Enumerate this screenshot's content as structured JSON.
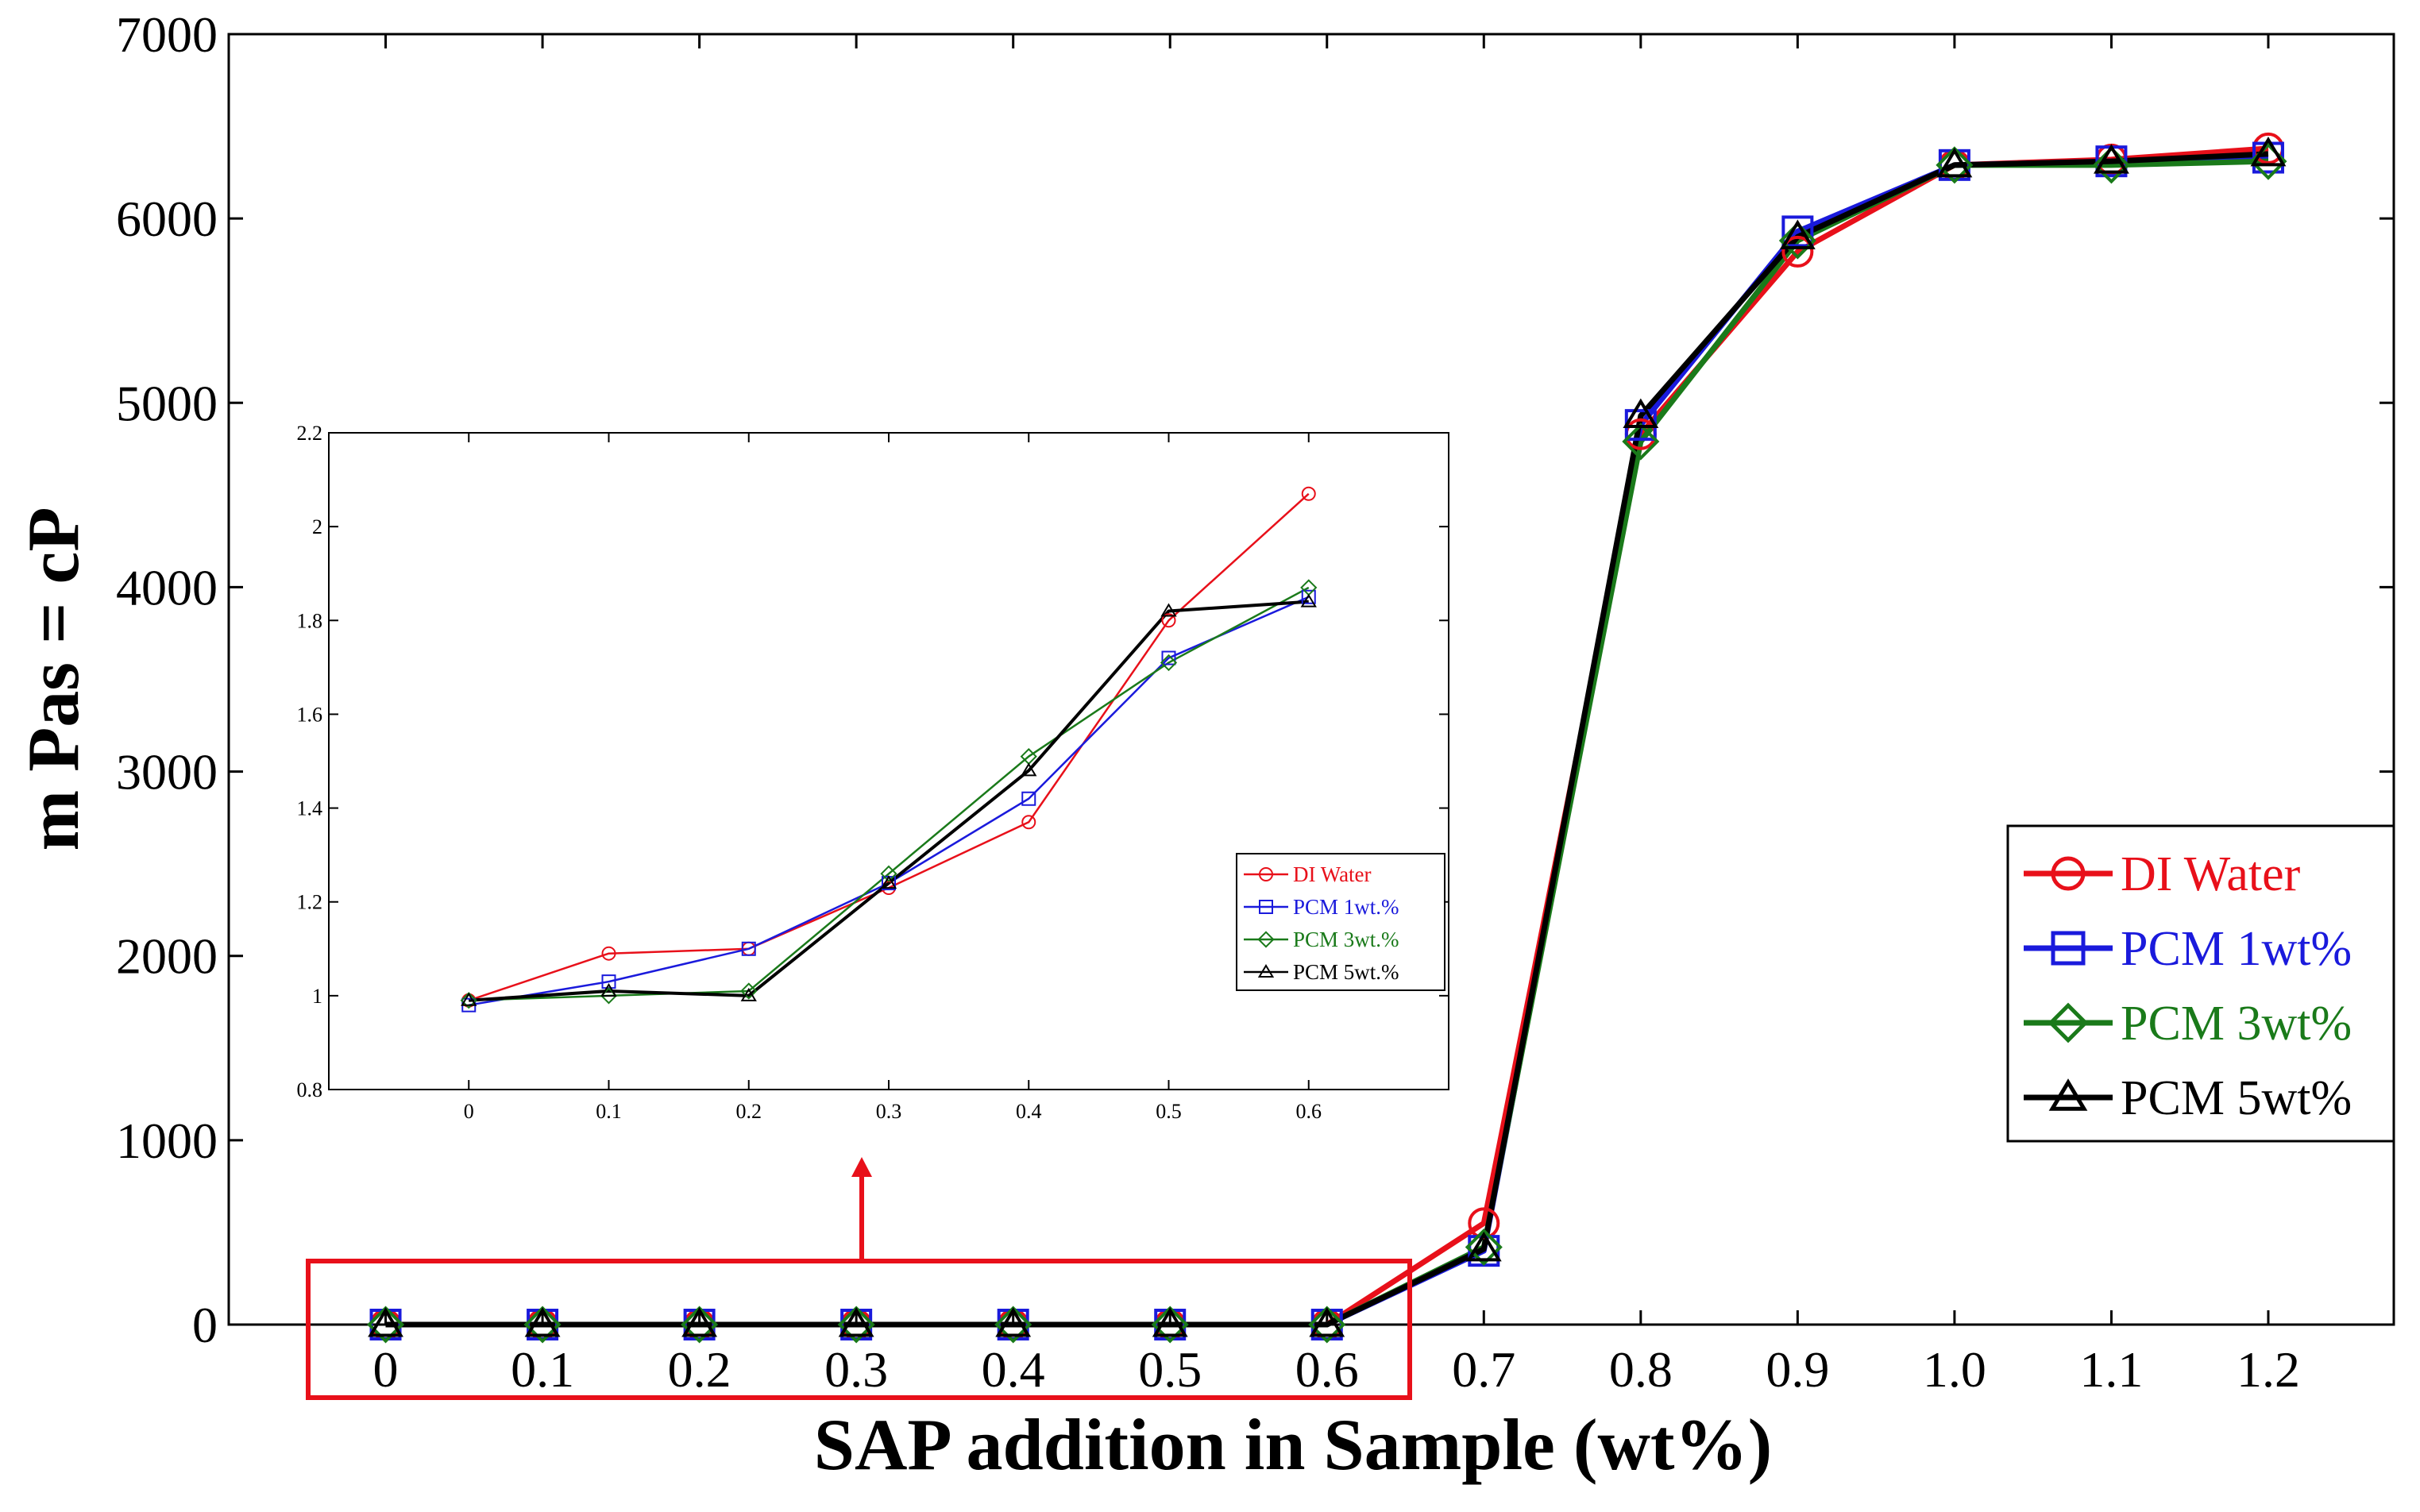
{
  "chart_data": [
    {
      "name": "main",
      "type": "line",
      "xlabel": "SAP addition in Sample (wt%)",
      "ylabel": "m Pas = cP",
      "categories": [
        "0",
        "0.1",
        "0.2",
        "0.3",
        "0.4",
        "0.5",
        "0.6",
        "0.7",
        "0.8",
        "0.9",
        "1.0",
        "1.1",
        "1.2"
      ],
      "x": [
        0,
        0.1,
        0.2,
        0.3,
        0.4,
        0.5,
        0.6,
        0.7,
        0.8,
        0.9,
        1.0,
        1.1,
        1.2
      ],
      "xlim": [
        -0.1,
        1.28
      ],
      "ylim": [
        0,
        7000
      ],
      "yticks": [
        0,
        1000,
        2000,
        3000,
        4000,
        5000,
        6000,
        7000
      ],
      "legend_position": "right",
      "series": [
        {
          "name": "DI Water",
          "color": "#e8101a",
          "marker": "circle",
          "values": [
            0,
            0,
            0,
            0,
            0,
            0,
            0,
            550,
            4830,
            5820,
            6290,
            6320,
            6380
          ]
        },
        {
          "name": "PCM 1wt%",
          "color": "#1a1adc",
          "marker": "square",
          "values": [
            0,
            0,
            0,
            0,
            0,
            0,
            0,
            400,
            4880,
            5930,
            6290,
            6310,
            6330
          ]
        },
        {
          "name": "PCM 3wt%",
          "color": "#1a7a1a",
          "marker": "diamond",
          "values": [
            0,
            0,
            0,
            0,
            0,
            0,
            0,
            420,
            4790,
            5880,
            6290,
            6290,
            6310
          ]
        },
        {
          "name": "PCM 5wt%",
          "color": "#000000",
          "marker": "triangle",
          "values": [
            0,
            0,
            0,
            0,
            0,
            0,
            0,
            410,
            4930,
            5900,
            6290,
            6310,
            6350
          ]
        }
      ]
    },
    {
      "name": "inset",
      "type": "line",
      "categories": [
        "0",
        "0.1",
        "0.2",
        "0.3",
        "0.4",
        "0.5",
        "0.6"
      ],
      "x": [
        0,
        0.1,
        0.2,
        0.3,
        0.4,
        0.5,
        0.6
      ],
      "xlim": [
        -0.1,
        0.7
      ],
      "ylim": [
        0.8,
        2.2
      ],
      "yticks": [
        "0.8",
        "1",
        "1.2",
        "1.4",
        "1.6",
        "1.8",
        "2",
        "2.2"
      ],
      "series": [
        {
          "name": "DI Water",
          "color": "#e8101a",
          "marker": "circle",
          "values": [
            0.99,
            1.09,
            1.1,
            1.23,
            1.37,
            1.8,
            2.07
          ]
        },
        {
          "name": "PCM 1wt.%",
          "color": "#1a1adc",
          "marker": "square",
          "values": [
            0.98,
            1.03,
            1.1,
            1.24,
            1.42,
            1.72,
            1.85
          ]
        },
        {
          "name": "PCM 3wt.%",
          "color": "#1a7a1a",
          "marker": "diamond",
          "values": [
            0.99,
            1.0,
            1.01,
            1.26,
            1.51,
            1.71,
            1.87
          ]
        },
        {
          "name": "PCM 5wt.%",
          "color": "#000000",
          "marker": "triangle",
          "values": [
            0.99,
            1.01,
            1.0,
            1.24,
            1.48,
            1.82,
            1.84
          ]
        }
      ]
    }
  ]
}
